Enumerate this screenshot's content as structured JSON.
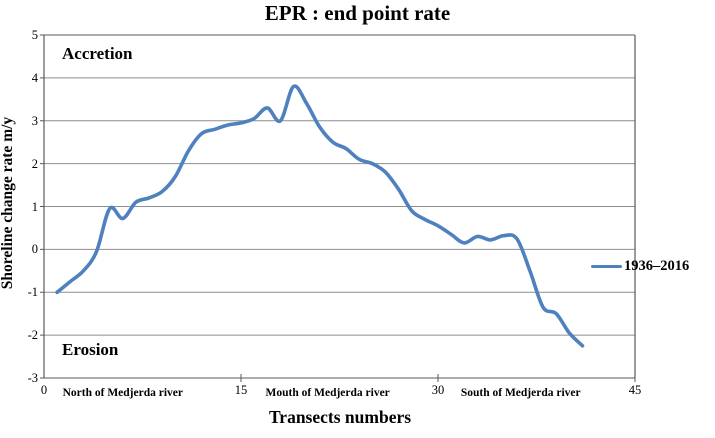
{
  "chart_data": {
    "type": "line",
    "title": "EPR : end point rate",
    "xlabel": "Transects numbers",
    "ylabel": "Shoreline change rate m/y",
    "xlim": [
      0,
      45
    ],
    "ylim": [
      -3,
      5
    ],
    "xticks": [
      0,
      15,
      30,
      45
    ],
    "yticks": [
      5,
      4,
      3,
      2,
      1,
      0,
      -1,
      -2,
      -3
    ],
    "grid": "horizontal",
    "grid_color": "#8e8e8e",
    "border_color": "#595959",
    "legend_position": "right-middle",
    "annotations": [
      {
        "text": "Accretion",
        "position": "top-left"
      },
      {
        "text": "Erosion",
        "position": "bottom-left"
      }
    ],
    "region_labels": [
      {
        "text": "North of Medjerda river",
        "center_t": 6.0
      },
      {
        "text": "Mouth of Medjerda river",
        "center_t": 21.6
      },
      {
        "text": "South of Medjerda river",
        "center_t": 36.3
      }
    ],
    "series": [
      {
        "name": "1936–2016",
        "color": "#4E81BD",
        "x": [
          1,
          2,
          3,
          4,
          5,
          6,
          7,
          8,
          9,
          10,
          11,
          12,
          13,
          14,
          15,
          16,
          17,
          18,
          19,
          20,
          21,
          22,
          23,
          24,
          25,
          26,
          27,
          28,
          29,
          30,
          31,
          32,
          33,
          34,
          35,
          36,
          37,
          38,
          39,
          40,
          41
        ],
        "values": [
          -1.0,
          -0.75,
          -0.5,
          -0.05,
          0.95,
          0.72,
          1.1,
          1.2,
          1.35,
          1.7,
          2.3,
          2.7,
          2.8,
          2.9,
          2.95,
          3.05,
          3.3,
          3.0,
          3.8,
          3.4,
          2.85,
          2.5,
          2.35,
          2.1,
          2.0,
          1.8,
          1.4,
          0.9,
          0.7,
          0.55,
          0.35,
          0.15,
          0.3,
          0.22,
          0.32,
          0.25,
          -0.5,
          -1.35,
          -1.5,
          -1.95,
          -2.25
        ]
      }
    ]
  }
}
